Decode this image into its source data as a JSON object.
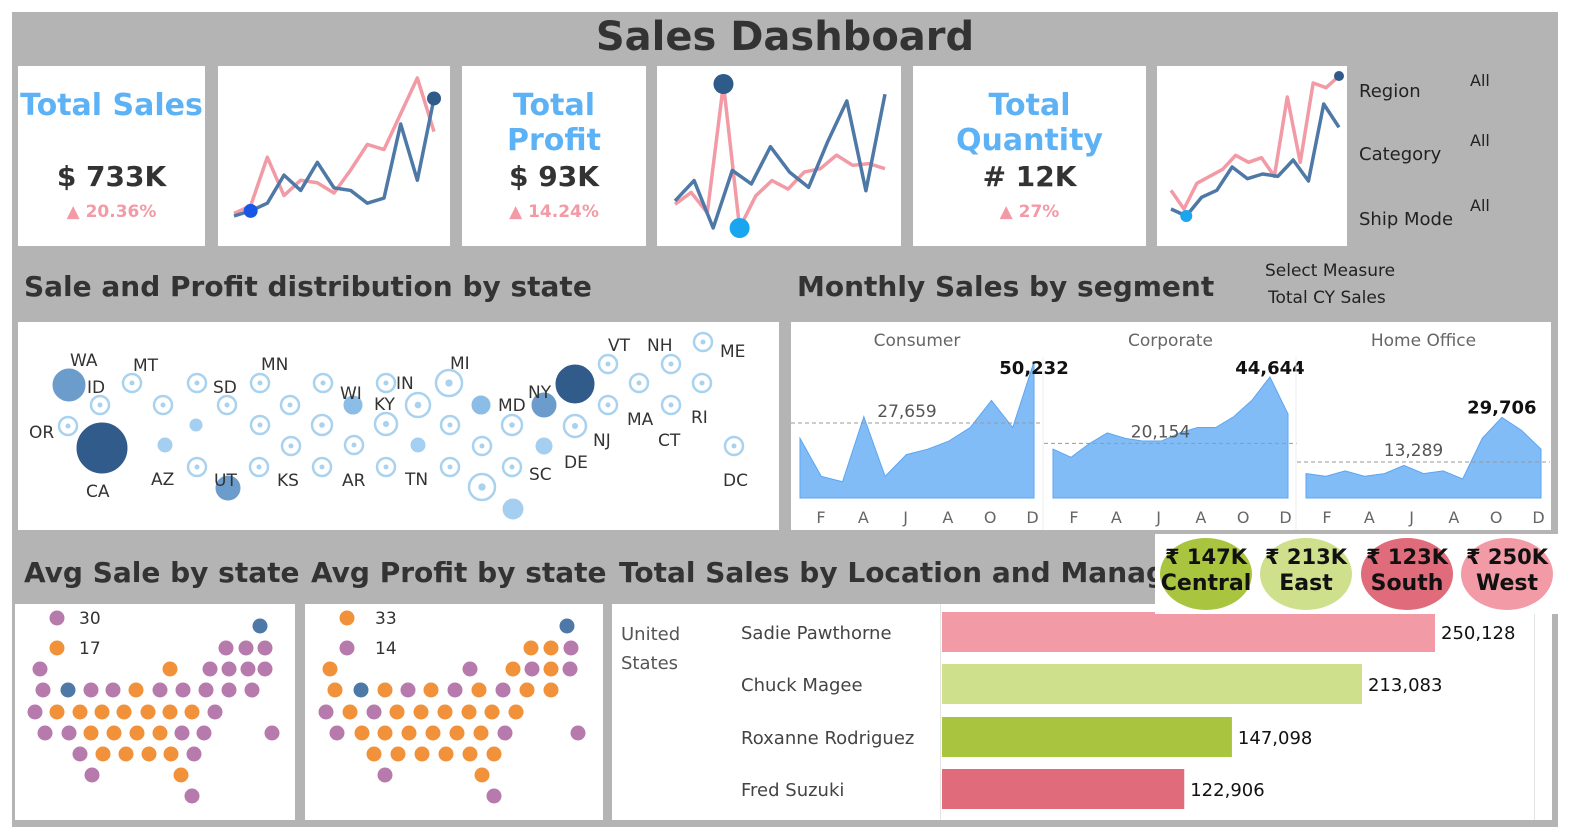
{
  "title": "Sales Dashboard",
  "kpis": {
    "sales": {
      "title": "Total Sales",
      "value": "$ 733K",
      "change": "▲ 20.36%"
    },
    "profit": {
      "title": "Total Profit",
      "value": "$ 93K",
      "change": "▲ 14.24%"
    },
    "quantity": {
      "title": "Total Quantity",
      "value": "# 12K",
      "change": "▲ 27%"
    }
  },
  "filters": {
    "region_label": "Region",
    "region_value": "All",
    "category_label": "Category",
    "category_value": "All",
    "shipmode_label": "Ship Mode",
    "shipmode_value": "All",
    "measure_label": "Select Measure",
    "measure_value": "Total CY Sales"
  },
  "sections": {
    "state_dist": "Sale and Profit distribution by state",
    "monthly": "Monthly Sales by segment",
    "avg_sale": "Avg Sale by state",
    "avg_profit": "Avg Profit by state",
    "location_manager": "Total Sales by Location and Manager"
  },
  "state_labels": {
    "wa": "WA",
    "mt": "MT",
    "mn": "MN",
    "mi": "MI",
    "vt": "VT",
    "nh": "NH",
    "me": "ME",
    "id": "ID",
    "sd": "SD",
    "wi": "WI",
    "in": "IN",
    "ny": "NY",
    "ky": "KY",
    "md": "MD",
    "ma": "MA",
    "ri": "RI",
    "ct": "CT",
    "nj": "NJ",
    "or": "OR",
    "ca": "CA",
    "az": "AZ",
    "ut": "UT",
    "ks": "KS",
    "ar": "AR",
    "tn": "TN",
    "sc": "SC",
    "de": "DE",
    "dc": "DC"
  },
  "colors": {
    "sales_line": "#f29aa5",
    "profit_line": "#4e79a7",
    "area_fill": "#74b5f6",
    "central": "#a9c43f",
    "east": "#cfe08c",
    "south": "#e06b7a",
    "west": "#f29aa5",
    "orange_dot": "#f1923a",
    "purple_dot": "#b77aac",
    "blue_dot": "#4e79a7"
  },
  "legends": {
    "avg_sale": {
      "high": "30",
      "low": "17"
    },
    "avg_profit": {
      "high": "33",
      "low": "14"
    }
  },
  "regions": [
    {
      "value": "₹ 147K",
      "name": "Central"
    },
    {
      "value": "₹ 213K",
      "name": "East"
    },
    {
      "value": "₹ 123K",
      "name": "South"
    },
    {
      "value": "₹ 250K",
      "name": "West"
    }
  ],
  "chart_data": [
    {
      "type": "line",
      "chart": "total-sales-sparkline",
      "series": [
        {
          "values": [
            5,
            8,
            27,
            12,
            18,
            17,
            13,
            22,
            32,
            30,
            44,
            58,
            37
          ]
        },
        {
          "values": [
            4,
            6,
            9,
            20,
            14,
            25,
            15,
            14,
            9,
            11,
            40,
            18,
            50
          ]
        }
      ]
    },
    {
      "type": "line",
      "chart": "total-profit-sparkline",
      "series": [
        {
          "values": [
            14,
            21,
            9,
            85,
            0,
            19,
            28,
            23,
            33,
            35,
            43,
            37,
            38,
            35
          ]
        },
        {
          "values": [
            16,
            28,
            0,
            34,
            26,
            48,
            33,
            24,
            51,
            75,
            22,
            79
          ]
        }
      ]
    },
    {
      "type": "line",
      "chart": "total-quantity-sparkline",
      "series": [
        {
          "values": [
            18,
            10,
            21,
            24,
            27,
            33,
            30,
            32,
            24,
            58,
            30,
            64,
            62,
            67
          ]
        },
        {
          "values": [
            10,
            7,
            15,
            18,
            28,
            23,
            25,
            24,
            31,
            22,
            55,
            45
          ]
        }
      ]
    },
    {
      "type": "area",
      "chart": "monthly-sales-by-segment",
      "x_ticks": [
        "F",
        "A",
        "J",
        "A",
        "O",
        "D"
      ],
      "panels": [
        {
          "name": "Consumer",
          "values": [
            22000,
            8000,
            6000,
            30000,
            8000,
            16000,
            18000,
            21000,
            26000,
            36000,
            26000,
            50232
          ],
          "average": 27659,
          "max_label": "50,232",
          "avg_label": "27,659"
        },
        {
          "name": "Corporate",
          "values": [
            18000,
            15000,
            20000,
            24000,
            22000,
            21000,
            21000,
            24000,
            26000,
            26000,
            30000,
            36000,
            44644,
            31000
          ],
          "average": 20154,
          "max_label": "44,644",
          "avg_label": "20,154"
        },
        {
          "name": "Home Office",
          "values": [
            9000,
            8000,
            10000,
            8000,
            9000,
            12000,
            9000,
            10000,
            7000,
            22000,
            29706,
            25000,
            18000
          ],
          "average": 13289,
          "max_label": "29,706",
          "avg_label": "13,289"
        }
      ]
    },
    {
      "type": "bar",
      "chart": "total-sales-by-location-and-manager",
      "location": "United States",
      "categories": [
        "Sadie Pawthorne",
        "Chuck Magee",
        "Roxanne Rodriguez",
        "Fred Suzuki"
      ],
      "values": [
        250128,
        213083,
        147098,
        122906
      ],
      "value_labels": [
        "250,128",
        "213,083",
        "147,098",
        "122,906"
      ],
      "colors": [
        "#f29aa5",
        "#cfe08c",
        "#a9c43f",
        "#e06b7a"
      ]
    }
  ]
}
